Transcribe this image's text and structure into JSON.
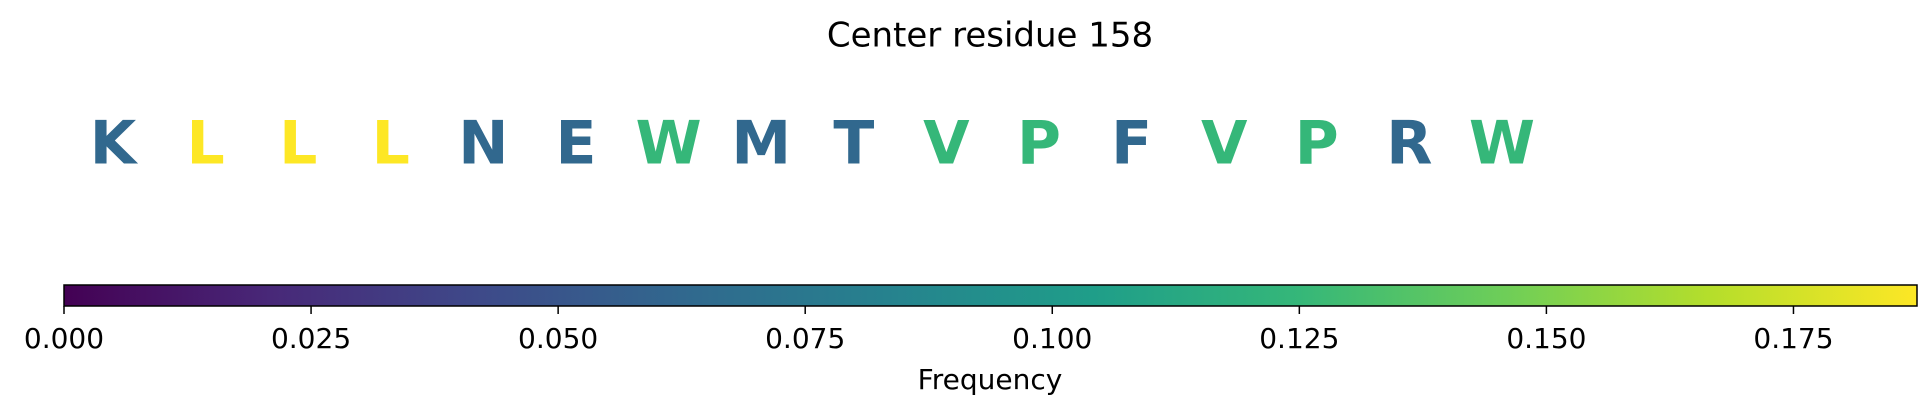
{
  "chart_data": {
    "type": "sequence",
    "title": "Center residue 158",
    "categories": [
      "K",
      "L",
      "L",
      "L",
      "N",
      "E",
      "W",
      "M",
      "T",
      "V",
      "P",
      "F",
      "V",
      "P",
      "R",
      "W"
    ],
    "values": [
      0.0625,
      0.1875,
      0.1875,
      0.1875,
      0.0625,
      0.0625,
      0.125,
      0.0625,
      0.0625,
      0.125,
      0.125,
      0.0625,
      0.125,
      0.125,
      0.0625,
      0.125
    ],
    "colormap": "viridis",
    "xlabel": "Frequency",
    "xlim": [
      0,
      0.1875
    ],
    "xticks": [
      {
        "value": 0,
        "label": "0.000"
      },
      {
        "value": 0.025,
        "label": "0.025"
      },
      {
        "value": 0.05,
        "label": "0.050"
      },
      {
        "value": 0.075,
        "label": "0.075"
      },
      {
        "value": 0.1,
        "label": "0.100"
      },
      {
        "value": 0.125,
        "label": "0.125"
      },
      {
        "value": 0.15,
        "label": "0.150"
      },
      {
        "value": 0.175,
        "label": "0.175"
      }
    ]
  }
}
